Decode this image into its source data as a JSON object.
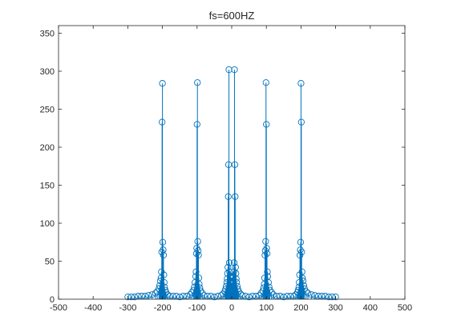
{
  "chart_data": {
    "type": "stem",
    "title": "fs=600HZ",
    "xlabel": "",
    "ylabel": "",
    "xlim": [
      -500,
      500
    ],
    "ylim": [
      0,
      360
    ],
    "xticks": [
      -500,
      -400,
      -300,
      -200,
      -100,
      0,
      100,
      200,
      300,
      400,
      500
    ],
    "yticks": [
      0,
      50,
      100,
      150,
      200,
      250,
      300,
      350
    ],
    "grid": false,
    "legend": "none",
    "color": "#0072BD",
    "series": [
      {
        "x": [
          -300,
          -290,
          -280,
          -270,
          -260,
          -250,
          -240,
          -230,
          -220,
          -215,
          -210,
          -208,
          -206,
          -204,
          -203,
          -202,
          -201,
          -200,
          -199,
          -198,
          -197,
          -196,
          -195,
          -194,
          -192,
          -190,
          -185,
          -180,
          -170,
          -160,
          -150,
          -140,
          -130,
          -120,
          -115,
          -110,
          -108,
          -106,
          -104,
          -103,
          -102,
          -101,
          -100,
          -99,
          -98,
          -97,
          -96,
          -95,
          -94,
          -92,
          -90,
          -85,
          -80,
          -70,
          -60,
          -50,
          -40,
          -30,
          -25,
          -20,
          -18,
          -16,
          -14,
          -13,
          -12,
          -11,
          -10,
          -9,
          -8,
          -7,
          -6,
          -5,
          -4,
          -3,
          -2,
          -1,
          0,
          1,
          2,
          3,
          4,
          5,
          6,
          7,
          8,
          9,
          10,
          11,
          12,
          13,
          14,
          16,
          18,
          20,
          25,
          30,
          40,
          50,
          60,
          70,
          80,
          85,
          90,
          92,
          94,
          95,
          96,
          97,
          98,
          99,
          100,
          101,
          102,
          103,
          104,
          106,
          108,
          110,
          115,
          120,
          130,
          140,
          150,
          160,
          170,
          180,
          185,
          190,
          192,
          194,
          195,
          196,
          197,
          198,
          199,
          200,
          201,
          202,
          203,
          204,
          206,
          208,
          210,
          215,
          220,
          230,
          240,
          250,
          260,
          270,
          280,
          290,
          300
        ],
        "y": [
          3,
          3,
          3,
          4,
          4,
          4,
          5,
          6,
          8,
          10,
          14,
          18,
          24,
          28,
          36,
          62,
          233,
          284,
          75,
          65,
          58,
          32,
          22,
          16,
          12,
          9,
          6,
          4,
          4,
          4,
          3,
          4,
          4,
          6,
          9,
          12,
          16,
          22,
          30,
          36,
          60,
          67,
          230,
          285,
          76,
          64,
          58,
          28,
          20,
          15,
          11,
          8,
          5,
          4,
          4,
          3,
          4,
          5,
          7,
          10,
          13,
          17,
          22,
          27,
          34,
          42,
          135,
          177,
          302,
          48,
          36,
          30,
          28,
          24,
          22,
          20,
          18,
          20,
          22,
          24,
          28,
          30,
          36,
          48,
          302,
          177,
          135,
          42,
          34,
          27,
          22,
          17,
          13,
          10,
          7,
          5,
          4,
          3,
          4,
          4,
          5,
          8,
          11,
          15,
          20,
          28,
          58,
          64,
          76,
          285,
          230,
          67,
          60,
          36,
          30,
          22,
          16,
          12,
          9,
          6,
          4,
          4,
          3,
          4,
          4,
          4,
          6,
          9,
          12,
          16,
          22,
          32,
          58,
          65,
          75,
          284,
          233,
          62,
          36,
          28,
          24,
          18,
          14,
          10,
          8,
          6,
          5,
          4,
          4,
          4,
          3,
          3,
          3
        ]
      }
    ]
  }
}
